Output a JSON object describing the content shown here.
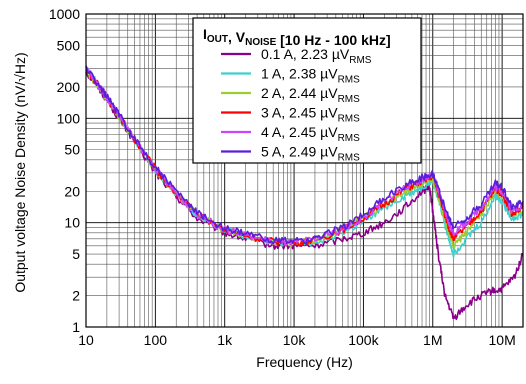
{
  "chart_data": {
    "type": "line",
    "xlabel": "Frequency (Hz)",
    "ylabel": "Output voltage Noise Density (nV/√Hz)",
    "x_scale": "log",
    "y_scale": "log",
    "xlim": [
      10,
      20000000
    ],
    "ylim": [
      1,
      1000
    ],
    "grid": true,
    "legend_position": "top-right",
    "x_ticks": [
      {
        "value": 10,
        "label": "10"
      },
      {
        "value": 100,
        "label": "100"
      },
      {
        "value": 1000,
        "label": "1k"
      },
      {
        "value": 10000,
        "label": "10k"
      },
      {
        "value": 100000,
        "label": "100k"
      },
      {
        "value": 1000000,
        "label": "1M"
      },
      {
        "value": 10000000,
        "label": "10M"
      }
    ],
    "y_ticks": [
      {
        "value": 1,
        "label": "1"
      },
      {
        "value": 2,
        "label": "2"
      },
      {
        "value": 5,
        "label": "5"
      },
      {
        "value": 10,
        "label": "10"
      },
      {
        "value": 20,
        "label": "20"
      },
      {
        "value": 50,
        "label": "50"
      },
      {
        "value": 100,
        "label": "100"
      },
      {
        "value": 200,
        "label": "200"
      },
      {
        "value": 500,
        "label": "500"
      },
      {
        "value": 1000,
        "label": "1000"
      }
    ],
    "legend": {
      "title_prefix": "I",
      "title_prefix_sub": "OUT",
      "title_mid": ", V",
      "title_mid_sub": "NOISE",
      "title_suffix": " [10 Hz - 100 kHz]"
    },
    "series": [
      {
        "label_main": "0.1 A, 2.23 µV",
        "label_sub": "RMS",
        "color": "#8B008B",
        "points": [
          [
            10,
            280
          ],
          [
            15,
            200
          ],
          [
            20,
            150
          ],
          [
            30,
            100
          ],
          [
            50,
            60
          ],
          [
            100,
            30
          ],
          [
            200,
            18
          ],
          [
            400,
            11
          ],
          [
            1000,
            8
          ],
          [
            2000,
            7
          ],
          [
            5000,
            6
          ],
          [
            10000,
            6
          ],
          [
            20000,
            6
          ],
          [
            50000,
            7
          ],
          [
            100000,
            8
          ],
          [
            200000,
            10
          ],
          [
            400000,
            14
          ],
          [
            700000,
            20
          ],
          [
            900000,
            22
          ],
          [
            1000000,
            13
          ],
          [
            1200000,
            5
          ],
          [
            1500000,
            2
          ],
          [
            2000000,
            1.2
          ],
          [
            3000000,
            1.6
          ],
          [
            5000000,
            2
          ],
          [
            7000000,
            2.2
          ],
          [
            10000000,
            2.3
          ],
          [
            15000000,
            3
          ],
          [
            20000000,
            5
          ]
        ]
      },
      {
        "label_main": "1 A, 2.38 µV",
        "label_sub": "RMS",
        "color": "#3ECFCF",
        "points": [
          [
            10,
            300
          ],
          [
            15,
            210
          ],
          [
            20,
            160
          ],
          [
            30,
            105
          ],
          [
            50,
            62
          ],
          [
            100,
            32
          ],
          [
            200,
            19
          ],
          [
            400,
            12
          ],
          [
            1000,
            8.5
          ],
          [
            2000,
            7.5
          ],
          [
            5000,
            6.5
          ],
          [
            10000,
            6.3
          ],
          [
            20000,
            6.5
          ],
          [
            50000,
            8
          ],
          [
            100000,
            10
          ],
          [
            200000,
            14
          ],
          [
            400000,
            18
          ],
          [
            700000,
            22
          ],
          [
            1000000,
            25
          ],
          [
            1300000,
            14
          ],
          [
            1700000,
            7
          ],
          [
            2000000,
            5
          ],
          [
            3000000,
            7
          ],
          [
            5000000,
            10
          ],
          [
            8000000,
            18
          ],
          [
            10000000,
            16
          ],
          [
            14000000,
            11
          ],
          [
            20000000,
            12
          ]
        ]
      },
      {
        "label_main": "2 A, 2.44 µV",
        "label_sub": "RMS",
        "color": "#9ACD32",
        "points": [
          [
            10,
            290
          ],
          [
            15,
            205
          ],
          [
            20,
            155
          ],
          [
            30,
            104
          ],
          [
            50,
            62
          ],
          [
            100,
            32
          ],
          [
            200,
            19
          ],
          [
            400,
            12
          ],
          [
            1000,
            8.5
          ],
          [
            2000,
            7.5
          ],
          [
            5000,
            6.5
          ],
          [
            10000,
            6.3
          ],
          [
            20000,
            6.7
          ],
          [
            50000,
            8.5
          ],
          [
            100000,
            11
          ],
          [
            200000,
            15
          ],
          [
            400000,
            20
          ],
          [
            700000,
            24
          ],
          [
            1000000,
            27
          ],
          [
            1300000,
            15
          ],
          [
            1700000,
            8
          ],
          [
            2000000,
            6
          ],
          [
            3000000,
            8
          ],
          [
            5000000,
            12
          ],
          [
            8000000,
            20
          ],
          [
            10000000,
            18
          ],
          [
            14000000,
            12
          ],
          [
            20000000,
            13
          ]
        ]
      },
      {
        "label_main": "3 A, 2.45 µV",
        "label_sub": "RMS",
        "color": "#FF0000",
        "points": [
          [
            10,
            295
          ],
          [
            15,
            208
          ],
          [
            20,
            158
          ],
          [
            30,
            106
          ],
          [
            50,
            63
          ],
          [
            100,
            33
          ],
          [
            200,
            19
          ],
          [
            400,
            12
          ],
          [
            1000,
            8.5
          ],
          [
            2000,
            7.5
          ],
          [
            5000,
            6.6
          ],
          [
            10000,
            6.4
          ],
          [
            20000,
            6.8
          ],
          [
            50000,
            8.5
          ],
          [
            100000,
            11
          ],
          [
            200000,
            15
          ],
          [
            400000,
            21
          ],
          [
            700000,
            25
          ],
          [
            1000000,
            28
          ],
          [
            1300000,
            16
          ],
          [
            1700000,
            9
          ],
          [
            2000000,
            7
          ],
          [
            3000000,
            9
          ],
          [
            5000000,
            13
          ],
          [
            8000000,
            21
          ],
          [
            10000000,
            19
          ],
          [
            14000000,
            12
          ],
          [
            20000000,
            14
          ]
        ]
      },
      {
        "label_main": "4 A, 2.45 µV",
        "label_sub": "RMS",
        "color": "#CC44FF",
        "points": [
          [
            10,
            298
          ],
          [
            15,
            210
          ],
          [
            20,
            160
          ],
          [
            30,
            106
          ],
          [
            50,
            63
          ],
          [
            100,
            33
          ],
          [
            200,
            19
          ],
          [
            400,
            12
          ],
          [
            1000,
            8.6
          ],
          [
            2000,
            7.6
          ],
          [
            5000,
            6.6
          ],
          [
            10000,
            6.4
          ],
          [
            20000,
            6.9
          ],
          [
            50000,
            8.7
          ],
          [
            100000,
            11
          ],
          [
            200000,
            16
          ],
          [
            400000,
            22
          ],
          [
            700000,
            26
          ],
          [
            1000000,
            29
          ],
          [
            1300000,
            17
          ],
          [
            1700000,
            10
          ],
          [
            2000000,
            8
          ],
          [
            3000000,
            10
          ],
          [
            5000000,
            14
          ],
          [
            8000000,
            22
          ],
          [
            10000000,
            20
          ],
          [
            14000000,
            13
          ],
          [
            20000000,
            15
          ]
        ]
      },
      {
        "label_main": "5 A, 2.49 µV",
        "label_sub": "RMS",
        "color": "#5A1ED8",
        "points": [
          [
            10,
            305
          ],
          [
            15,
            212
          ],
          [
            20,
            162
          ],
          [
            30,
            108
          ],
          [
            50,
            64
          ],
          [
            100,
            34
          ],
          [
            200,
            20
          ],
          [
            400,
            12.5
          ],
          [
            1000,
            8.8
          ],
          [
            2000,
            7.8
          ],
          [
            5000,
            6.8
          ],
          [
            10000,
            6.6
          ],
          [
            20000,
            7
          ],
          [
            50000,
            9
          ],
          [
            100000,
            12
          ],
          [
            200000,
            17
          ],
          [
            400000,
            23
          ],
          [
            700000,
            27
          ],
          [
            1000000,
            30
          ],
          [
            1300000,
            18
          ],
          [
            1700000,
            11
          ],
          [
            2000000,
            9
          ],
          [
            3000000,
            11
          ],
          [
            5000000,
            15
          ],
          [
            8000000,
            24
          ],
          [
            10000000,
            22
          ],
          [
            14000000,
            14
          ],
          [
            20000000,
            16
          ]
        ]
      }
    ]
  }
}
